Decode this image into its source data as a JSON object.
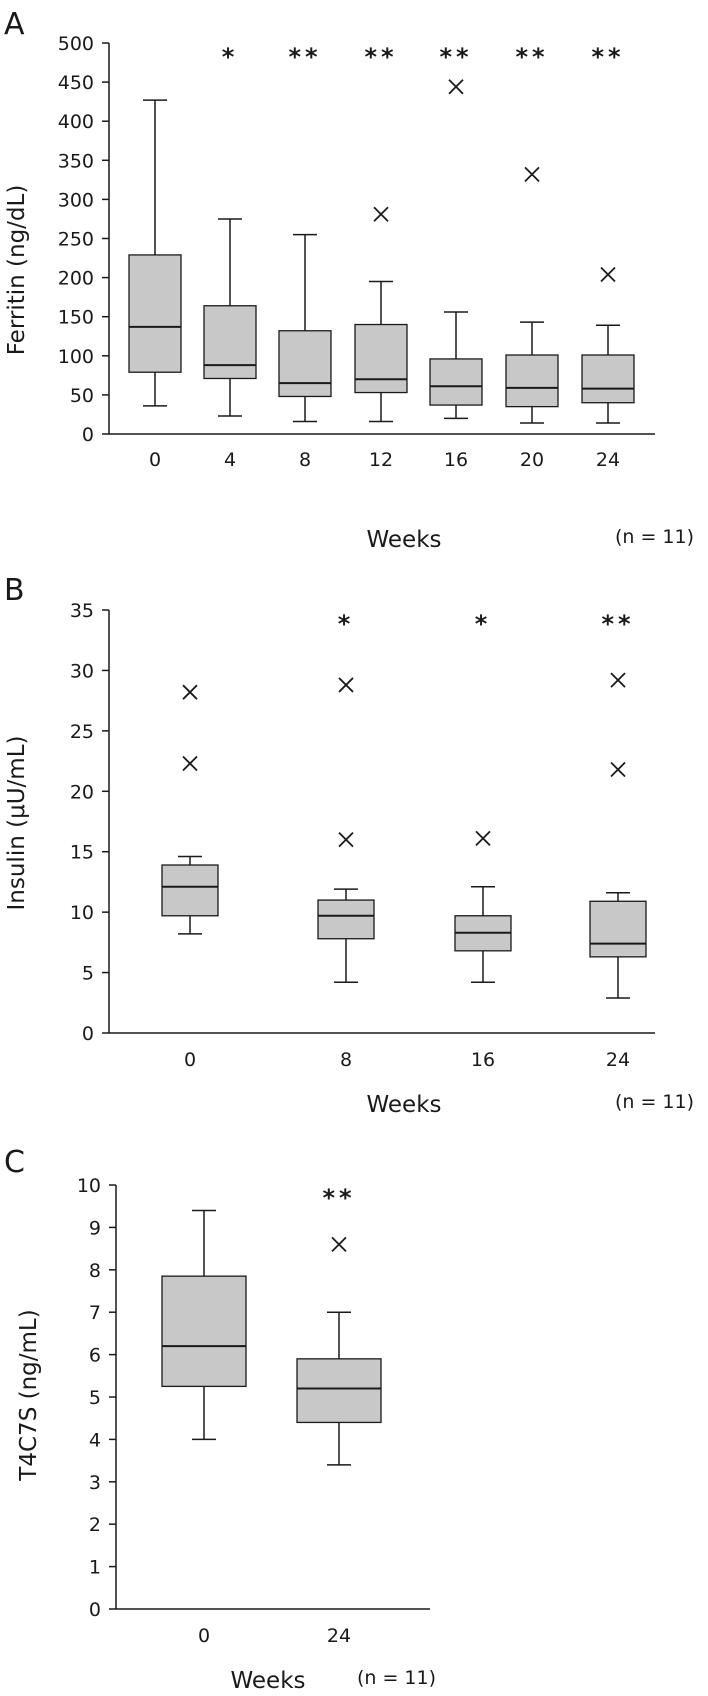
{
  "chart_data": [
    {
      "panel": "A",
      "type": "box",
      "xlabel": "Weeks",
      "ylabel": "Ferritin (ng/dL)",
      "note": "(n = 11)",
      "ylim": [
        0,
        500
      ],
      "yticks": [
        "0",
        "50",
        "100",
        "150",
        "200",
        "250",
        "300",
        "350",
        "400",
        "450",
        "500"
      ],
      "categories": [
        "0",
        "4",
        "8",
        "12",
        "16",
        "20",
        "24"
      ],
      "boxes": [
        {
          "min": 36,
          "q1": 79,
          "median": 137,
          "q3": 229,
          "max": 427,
          "outliers": [],
          "sig": ""
        },
        {
          "min": 23,
          "q1": 71,
          "median": 88,
          "q3": 164,
          "max": 275,
          "outliers": [],
          "sig": "*"
        },
        {
          "min": 16,
          "q1": 48,
          "median": 65,
          "q3": 132,
          "max": 255,
          "outliers": [],
          "sig": "**"
        },
        {
          "min": 16,
          "q1": 53,
          "median": 70,
          "q3": 140,
          "max": 195,
          "outliers": [
            281
          ],
          "sig": "**"
        },
        {
          "min": 20,
          "q1": 37,
          "median": 61,
          "q3": 96,
          "max": 156,
          "outliers": [
            444
          ],
          "sig": "**"
        },
        {
          "min": 14,
          "q1": 35,
          "median": 59,
          "q3": 101,
          "max": 143,
          "outliers": [
            332
          ],
          "sig": "**"
        },
        {
          "min": 14,
          "q1": 40,
          "median": 58,
          "q3": 101,
          "max": 139,
          "outliers": [
            204
          ],
          "sig": "**"
        }
      ]
    },
    {
      "panel": "B",
      "type": "box",
      "xlabel": "Weeks",
      "ylabel": "Insulin (μU/mL)",
      "note": "(n = 11)",
      "ylim": [
        0,
        35
      ],
      "yticks": [
        "0",
        "5",
        "10",
        "15",
        "20",
        "25",
        "30",
        "35"
      ],
      "categories": [
        "0",
        "8",
        "16",
        "24"
      ],
      "boxes": [
        {
          "min": 8.2,
          "q1": 9.7,
          "median": 12.1,
          "q3": 13.9,
          "max": 14.6,
          "outliers": [
            22.3,
            28.2
          ],
          "sig": ""
        },
        {
          "min": 4.2,
          "q1": 7.8,
          "median": 9.7,
          "q3": 11.0,
          "max": 11.9,
          "outliers": [
            16.0,
            28.8
          ],
          "sig": "*"
        },
        {
          "min": 4.2,
          "q1": 6.8,
          "median": 8.3,
          "q3": 9.7,
          "max": 12.1,
          "outliers": [
            16.1
          ],
          "sig": "*"
        },
        {
          "min": 2.9,
          "q1": 6.3,
          "median": 7.4,
          "q3": 10.9,
          "max": 11.6,
          "outliers": [
            21.8,
            29.2
          ],
          "sig": "**"
        }
      ]
    },
    {
      "panel": "C",
      "type": "box",
      "xlabel": "Weeks",
      "ylabel": "T4C7S (ng/mL)",
      "note": "(n = 11)",
      "ylim": [
        0,
        10
      ],
      "yticks": [
        "0",
        "1",
        "2",
        "3",
        "4",
        "5",
        "6",
        "7",
        "8",
        "9",
        "10"
      ],
      "categories": [
        "0",
        "24"
      ],
      "boxes": [
        {
          "min": 4.0,
          "q1": 5.25,
          "median": 6.2,
          "q3": 7.85,
          "max": 9.4,
          "outliers": [],
          "sig": ""
        },
        {
          "min": 3.4,
          "q1": 4.4,
          "median": 5.2,
          "q3": 5.9,
          "max": 7.0,
          "outliers": [
            8.6
          ],
          "sig": "**"
        }
      ]
    }
  ],
  "style": {
    "box_fill": "#c8c8c8",
    "line_color": "#1a1a1a"
  }
}
